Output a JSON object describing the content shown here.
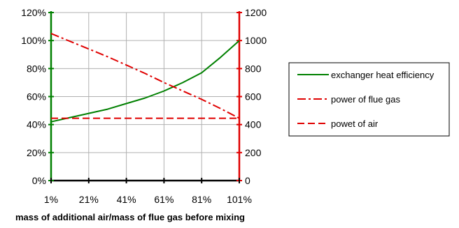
{
  "chart_data": {
    "type": "line",
    "title": "",
    "xlabel": "mass of additional air/mass of flue gas before mixing",
    "ylabel": "",
    "x_ticks": [
      "1%",
      "21%",
      "41%",
      "61%",
      "81%",
      "101%"
    ],
    "x_values": [
      1,
      11,
      21,
      31,
      41,
      51,
      61,
      71,
      81,
      91,
      101
    ],
    "xlim": [
      1,
      101
    ],
    "y_left": {
      "ticks": [
        "0%",
        "20%",
        "40%",
        "60%",
        "80%",
        "100%",
        "120%"
      ],
      "lim": [
        0,
        120
      ],
      "color": "#008000"
    },
    "y_right": {
      "ticks": [
        "0",
        "200",
        "400",
        "600",
        "800",
        "1000",
        "1200"
      ],
      "lim": [
        0,
        1200
      ],
      "color": "#e00000"
    },
    "grid": true,
    "legend_position": "right",
    "series": [
      {
        "name": "exchanger heat efficiency",
        "axis": "left",
        "style": "solid",
        "color": "#008000",
        "values": [
          42,
          45,
          48,
          51,
          55,
          59,
          64,
          70,
          77,
          88,
          100
        ]
      },
      {
        "name": "power of flue gas",
        "axis": "right",
        "style": "dash-dot",
        "color": "#e00000",
        "values": [
          1050,
          995,
          940,
          885,
          825,
          765,
          700,
          640,
          580,
          515,
          445
        ]
      },
      {
        "name": "powet of air",
        "axis": "right",
        "style": "dash",
        "color": "#e00000",
        "values": [
          445,
          445,
          445,
          445,
          445,
          445,
          445,
          445,
          445,
          445,
          445
        ]
      }
    ]
  }
}
